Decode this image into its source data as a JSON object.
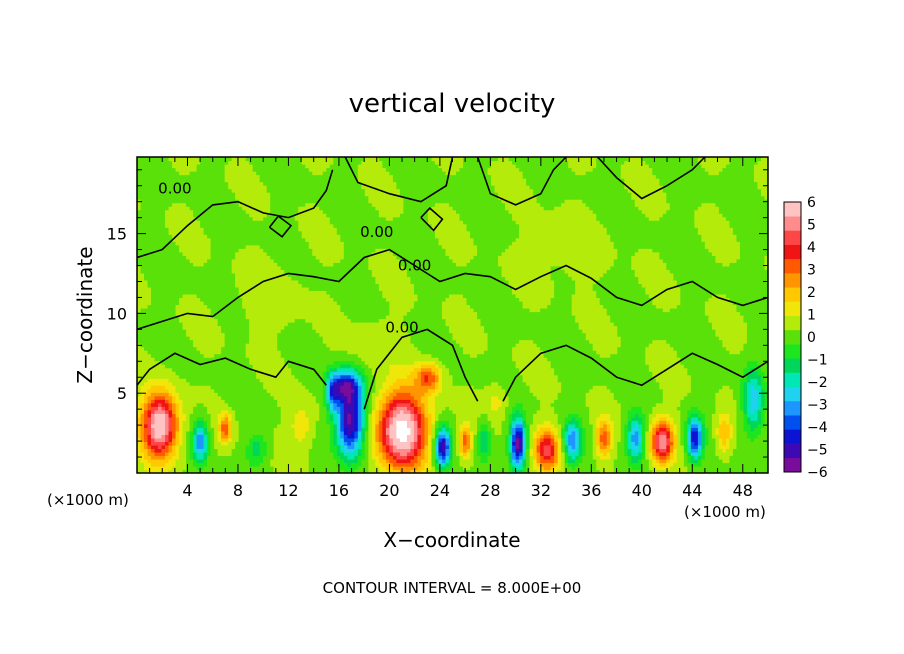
{
  "chart_data": {
    "type": "heatmap",
    "title": "vertical velocity",
    "xlabel": "X−coordinate",
    "ylabel": "Z−coordinate",
    "x_unit_left": "(×1000 m)",
    "x_unit_right": "(×1000 m)",
    "footer": "CONTOUR INTERVAL = 8.000E+00",
    "xlim": [
      0,
      50
    ],
    "ylim": [
      0,
      19.8
    ],
    "x_ticks": [
      "4",
      "8",
      "12",
      "16",
      "20",
      "24",
      "28",
      "32",
      "36",
      "40",
      "44",
      "48"
    ],
    "y_ticks": [
      "5",
      "10",
      "15"
    ],
    "contour_labels": [
      "0.00",
      "0.00",
      "0.00",
      "0.00"
    ],
    "colorbar": {
      "range": [
        -6,
        6
      ],
      "tick_labels": [
        "6",
        "5",
        "4",
        "3",
        "2",
        "1",
        "0",
        "−1",
        "−2",
        "−3",
        "−4",
        "−5",
        "−6"
      ],
      "colors": [
        "#7a0c9c",
        "#3c0ab4",
        "#0a14d2",
        "#0050f0",
        "#1e96ff",
        "#1ed2f0",
        "#00e6b4",
        "#00d75a",
        "#1ee61e",
        "#5ae10a",
        "#b4eb0a",
        "#f0e60a",
        "#ffc800",
        "#ff9600",
        "#ff5a00",
        "#f01414",
        "#ff4646",
        "#ff8c8c",
        "#ffc3c3"
      ]
    },
    "features": [
      {
        "x": 1.8,
        "z": 3.0,
        "w": 1.4,
        "h": 2.0,
        "v": 6.0
      },
      {
        "x": 5.0,
        "z": 2.0,
        "w": 0.6,
        "h": 1.3,
        "v": -3.5
      },
      {
        "x": 7.0,
        "z": 2.8,
        "w": 0.5,
        "h": 0.9,
        "v": 3.0
      },
      {
        "x": 9.5,
        "z": 1.5,
        "w": 0.8,
        "h": 1.0,
        "v": -1.5
      },
      {
        "x": 13.0,
        "z": 3.0,
        "w": 1.0,
        "h": 1.5,
        "v": 1.2
      },
      {
        "x": 15.5,
        "z": 5.0,
        "w": 0.5,
        "h": 1.2,
        "v": -3.0
      },
      {
        "x": 16.9,
        "z": 3.3,
        "w": 1.1,
        "h": 2.2,
        "v": -6.0
      },
      {
        "x": 16.5,
        "z": 5.5,
        "w": 1.2,
        "h": 1.0,
        "v": -4.0
      },
      {
        "x": 21.0,
        "z": 2.7,
        "w": 1.9,
        "h": 2.4,
        "v": 6.5
      },
      {
        "x": 23.1,
        "z": 6.0,
        "w": 1.0,
        "h": 0.9,
        "v": 3.0
      },
      {
        "x": 24.2,
        "z": 1.6,
        "w": 0.6,
        "h": 1.2,
        "v": -5.5
      },
      {
        "x": 26.0,
        "z": 2.0,
        "w": 0.5,
        "h": 1.0,
        "v": 3.0
      },
      {
        "x": 27.5,
        "z": 2.0,
        "w": 0.5,
        "h": 1.2,
        "v": -2.0
      },
      {
        "x": 30.2,
        "z": 1.9,
        "w": 0.6,
        "h": 1.5,
        "v": -6.0
      },
      {
        "x": 32.5,
        "z": 1.5,
        "w": 1.0,
        "h": 1.3,
        "v": 4.0
      },
      {
        "x": 34.5,
        "z": 2.0,
        "w": 0.7,
        "h": 1.3,
        "v": -3.5
      },
      {
        "x": 37.0,
        "z": 2.2,
        "w": 0.6,
        "h": 1.2,
        "v": 3.0
      },
      {
        "x": 39.5,
        "z": 2.2,
        "w": 0.7,
        "h": 1.4,
        "v": -3.5
      },
      {
        "x": 41.6,
        "z": 2.0,
        "w": 0.9,
        "h": 1.3,
        "v": 5.0
      },
      {
        "x": 44.2,
        "z": 2.2,
        "w": 0.6,
        "h": 1.3,
        "v": -5.0
      },
      {
        "x": 46.5,
        "z": 2.5,
        "w": 0.6,
        "h": 1.2,
        "v": 2.0
      },
      {
        "x": 48.8,
        "z": 4.5,
        "w": 0.8,
        "h": 2.0,
        "v": -3.0
      },
      {
        "x": 28.5,
        "z": 4.5,
        "w": 0.8,
        "h": 1.0,
        "v": 1.0
      },
      {
        "x": 19.0,
        "z": 8.0,
        "w": 2.0,
        "h": 1.5,
        "v": 0.6
      },
      {
        "x": 10.5,
        "z": 11.0,
        "w": 2.5,
        "h": 2.0,
        "v": 0.5
      },
      {
        "x": 34.0,
        "z": 14.0,
        "w": 3.0,
        "h": 2.0,
        "v": 0.4
      }
    ],
    "contours": [
      [
        [
          0,
          13.5
        ],
        [
          2,
          14.0
        ],
        [
          4,
          15.5
        ],
        [
          6,
          16.8
        ],
        [
          8,
          17.0
        ],
        [
          10,
          16.3
        ],
        [
          12,
          16.0
        ],
        [
          14,
          16.6
        ],
        [
          15,
          17.7
        ],
        [
          15.5,
          19.0
        ]
      ],
      [
        [
          25,
          19.8
        ],
        [
          24.5,
          18.0
        ],
        [
          22.5,
          17.0
        ],
        [
          20,
          17.5
        ],
        [
          17.5,
          18.2
        ],
        [
          16.5,
          19.8
        ]
      ],
      [
        [
          27,
          19.8
        ],
        [
          28,
          17.5
        ],
        [
          30,
          16.8
        ],
        [
          32,
          17.5
        ],
        [
          33,
          19.0
        ],
        [
          34,
          19.8
        ]
      ],
      [
        [
          36.5,
          19.8
        ],
        [
          38,
          18.5
        ],
        [
          40,
          17.2
        ],
        [
          42,
          18.0
        ],
        [
          44,
          19.0
        ],
        [
          45,
          19.8
        ]
      ],
      [
        [
          0,
          9.0
        ],
        [
          2,
          9.5
        ],
        [
          4,
          10.0
        ],
        [
          6,
          9.8
        ],
        [
          8,
          11.0
        ],
        [
          10,
          12.0
        ],
        [
          12,
          12.5
        ],
        [
          14,
          12.3
        ],
        [
          16,
          12.0
        ],
        [
          18,
          13.5
        ],
        [
          20,
          14.0
        ],
        [
          22,
          13.0
        ],
        [
          24,
          12.0
        ],
        [
          26,
          12.5
        ],
        [
          28,
          12.3
        ],
        [
          30,
          11.5
        ],
        [
          32,
          12.3
        ],
        [
          34,
          13.0
        ],
        [
          36,
          12.2
        ],
        [
          38,
          11.0
        ],
        [
          40,
          10.5
        ],
        [
          42,
          11.5
        ],
        [
          44,
          12.0
        ],
        [
          46,
          11.0
        ],
        [
          48,
          10.5
        ],
        [
          50,
          11.0
        ]
      ],
      [
        [
          0,
          5.5
        ],
        [
          1,
          6.5
        ],
        [
          3,
          7.5
        ],
        [
          5,
          6.8
        ],
        [
          7,
          7.2
        ],
        [
          9,
          6.5
        ],
        [
          11,
          6.0
        ],
        [
          12,
          7.0
        ],
        [
          14,
          6.5
        ],
        [
          15,
          5.5
        ]
      ],
      [
        [
          18,
          4.0
        ],
        [
          19,
          6.5
        ],
        [
          21,
          8.5
        ],
        [
          23,
          9.0
        ],
        [
          25,
          8.0
        ],
        [
          26,
          6.0
        ],
        [
          27,
          4.5
        ]
      ],
      [
        [
          29,
          4.5
        ],
        [
          30,
          6.0
        ],
        [
          32,
          7.5
        ],
        [
          34,
          8.0
        ],
        [
          36,
          7.2
        ],
        [
          38,
          6.0
        ],
        [
          40,
          5.5
        ],
        [
          42,
          6.5
        ],
        [
          44,
          7.5
        ],
        [
          46,
          6.8
        ],
        [
          48,
          6.0
        ],
        [
          50,
          7.0
        ]
      ],
      [
        [
          22.5,
          16.0
        ],
        [
          23.5,
          15.2
        ],
        [
          24.2,
          15.9
        ],
        [
          23.2,
          16.6
        ],
        [
          22.5,
          16.0
        ]
      ],
      [
        [
          10.5,
          15.4
        ],
        [
          11.5,
          14.8
        ],
        [
          12.2,
          15.5
        ],
        [
          11.2,
          16.1
        ],
        [
          10.5,
          15.4
        ]
      ]
    ]
  }
}
